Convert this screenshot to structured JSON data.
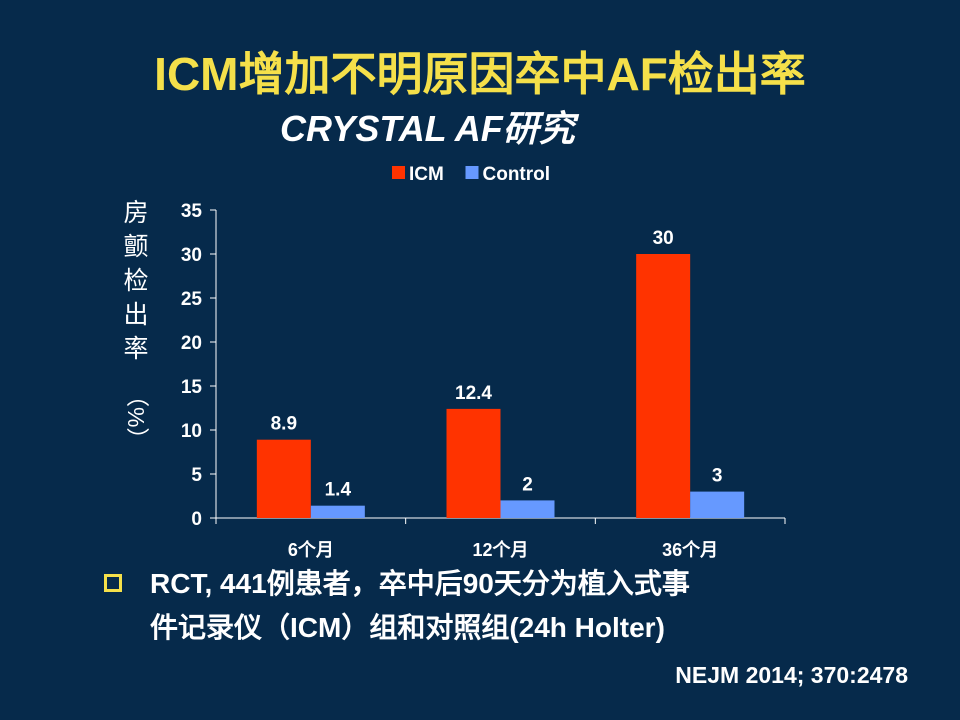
{
  "slide": {
    "title": "ICM增加不明原因卒中AF检出率",
    "subtitle": "CRYSTAL AF研究",
    "bullet_line1": "RCT, 441例患者，卒中后90天分为植入式事",
    "bullet_line2": "件记录仪（ICM）组和对照组(24h Holter)",
    "reference": "NEJM 2014; 370:2478"
  },
  "chart_data": {
    "type": "bar",
    "title": "",
    "xlabel": "",
    "ylabel_main": "房颤检出率",
    "ylabel_unit": "（%）",
    "categories": [
      "6个月",
      "12个月",
      "36个月"
    ],
    "series": [
      {
        "name": "ICM",
        "color": "#ff3300",
        "values": [
          8.9,
          12.4,
          30
        ],
        "labels": [
          "8.9",
          "12.4",
          "30"
        ]
      },
      {
        "name": "Control",
        "color": "#6699ff",
        "values": [
          1.4,
          2,
          3
        ],
        "labels": [
          "1.4",
          "2",
          "3"
        ]
      }
    ],
    "ylim": [
      0,
      35
    ],
    "yticks": [
      0,
      5,
      10,
      15,
      20,
      25,
      30,
      35
    ],
    "grid": false,
    "legend": "top-center"
  }
}
